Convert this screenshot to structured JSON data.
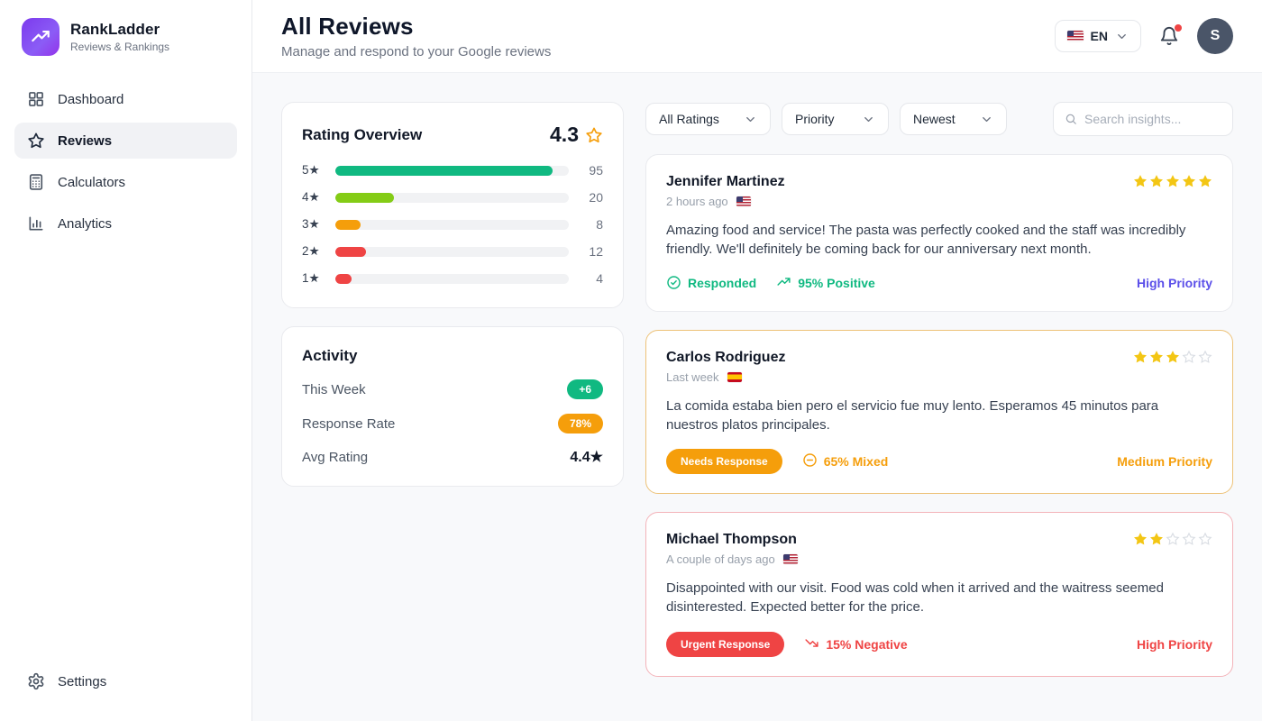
{
  "brand": {
    "name": "RankLadder",
    "tagline": "Reviews & Rankings"
  },
  "sidebar": {
    "items": [
      {
        "id": "dashboard",
        "label": "Dashboard",
        "icon": "dashboard",
        "active": false
      },
      {
        "id": "reviews",
        "label": "Reviews",
        "icon": "star",
        "active": true
      },
      {
        "id": "calculators",
        "label": "Calculators",
        "icon": "calculator",
        "active": false
      },
      {
        "id": "analytics",
        "label": "Analytics",
        "icon": "barchart",
        "active": false
      }
    ],
    "settings_label": "Settings"
  },
  "header": {
    "title": "All Reviews",
    "subtitle": "Manage and respond to your Google reviews",
    "language": "EN",
    "language_flag": "us",
    "notifications_unread": true,
    "avatar_initial": "S"
  },
  "rating_overview": {
    "title": "Rating Overview",
    "average": "4.3",
    "rows": [
      {
        "label": "5★",
        "count": "95",
        "pct": 93,
        "color": "#10b981"
      },
      {
        "label": "4★",
        "count": "20",
        "pct": 25,
        "color": "#84cc16"
      },
      {
        "label": "3★",
        "count": "8",
        "pct": 11,
        "color": "#f59e0b"
      },
      {
        "label": "2★",
        "count": "12",
        "pct": 13,
        "color": "#ef4444"
      },
      {
        "label": "1★",
        "count": "4",
        "pct": 7,
        "color": "#ef4444"
      }
    ]
  },
  "activity": {
    "title": "Activity",
    "rows": [
      {
        "label": "This Week",
        "value": "+6",
        "style": "pill",
        "color": "#10b981"
      },
      {
        "label": "Response Rate",
        "value": "78%",
        "style": "pill",
        "color": "#f59e0b"
      },
      {
        "label": "Avg Rating",
        "value": "4.4★",
        "style": "bold",
        "color": "#111827"
      }
    ]
  },
  "filters": {
    "dropdowns": [
      {
        "id": "ratings",
        "label": "All Ratings"
      },
      {
        "id": "priority",
        "label": "Priority"
      },
      {
        "id": "sort",
        "label": "Newest"
      }
    ],
    "search_placeholder": "Search insights..."
  },
  "reviews": [
    {
      "name": "Jennifer Martinez",
      "time": "2 hours ago",
      "flag": "us",
      "rating": 5,
      "text": "Amazing food and service! The pasta was perfectly cooked and the staff was incredibly friendly. We'll definitely be coming back for our anniversary next month.",
      "badge": {
        "label": "Responded",
        "style": "text",
        "icon": "check-circle",
        "color": "#10b981"
      },
      "sentiment": {
        "label": "95% Positive",
        "icon": "trend-up",
        "color": "#10b981"
      },
      "priority": {
        "label": "High Priority",
        "color": "#5b4fe9"
      },
      "border_color": "#e9eaee"
    },
    {
      "name": "Carlos Rodriguez",
      "time": "Last week",
      "flag": "es",
      "rating": 3,
      "text": "La comida estaba bien pero el servicio fue muy lento. Esperamos 45 minutos para nuestros platos principales.",
      "badge": {
        "label": "Needs Response",
        "style": "pill",
        "icon": null,
        "color": "#f59e0b"
      },
      "sentiment": {
        "label": "65% Mixed",
        "icon": "minus-circle",
        "color": "#f59e0b"
      },
      "priority": {
        "label": "Medium Priority",
        "color": "#f59e0b"
      },
      "border_color": "#edc278"
    },
    {
      "name": "Michael Thompson",
      "time": "A couple of days ago",
      "flag": "us",
      "rating": 2,
      "text": "Disappointed with our visit. Food was cold when it arrived and the waitress seemed disinterested. Expected better for the price.",
      "badge": {
        "label": "Urgent Response",
        "style": "pill",
        "icon": null,
        "color": "#ef4444"
      },
      "sentiment": {
        "label": "15% Negative",
        "icon": "trend-down",
        "color": "#ef4444"
      },
      "priority": {
        "label": "High Priority",
        "color": "#ef4444"
      },
      "border_color": "#f3b3b9"
    }
  ],
  "colors": {
    "brand_gradient_start": "#7c3aed",
    "brand_gradient_end": "#9333ea",
    "green": "#10b981",
    "lime": "#84cc16",
    "orange": "#f59e0b",
    "red": "#ef4444",
    "indigo_priority": "#5b4fe9",
    "star_gold": "#f3c614"
  }
}
